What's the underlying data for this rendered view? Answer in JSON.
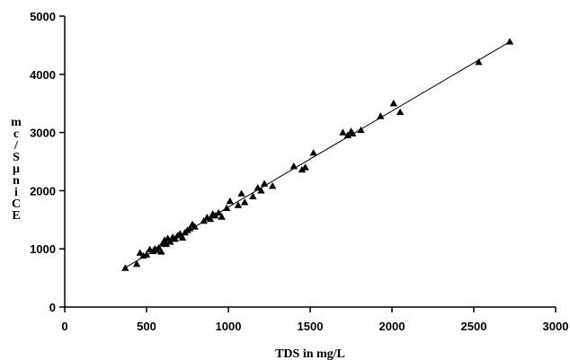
{
  "chart_data": {
    "type": "scatter",
    "title": "",
    "xlabel": "TDS in mg/L",
    "ylabel": "EC in μS/cm",
    "xlim": [
      0,
      3000
    ],
    "ylim": [
      0,
      5000
    ],
    "x_ticks": [
      "0",
      "500",
      "1000",
      "1500",
      "2000",
      "2500",
      "3000"
    ],
    "y_ticks": [
      "0",
      "1000",
      "2000",
      "3000",
      "4000",
      "5000"
    ],
    "grid": false,
    "legend": "none",
    "marker": "triangle",
    "colors": {
      "marker": "#000000",
      "trendline": "#000000",
      "axis": "#000000"
    },
    "trendline": {
      "x": [
        360,
        2720
      ],
      "y": [
        660,
        4560
      ]
    },
    "points": [
      {
        "x": 370,
        "y": 670
      },
      {
        "x": 440,
        "y": 740
      },
      {
        "x": 460,
        "y": 930
      },
      {
        "x": 480,
        "y": 880
      },
      {
        "x": 500,
        "y": 900
      },
      {
        "x": 520,
        "y": 990
      },
      {
        "x": 540,
        "y": 960
      },
      {
        "x": 550,
        "y": 1000
      },
      {
        "x": 560,
        "y": 980
      },
      {
        "x": 575,
        "y": 1020
      },
      {
        "x": 590,
        "y": 950
      },
      {
        "x": 600,
        "y": 1100
      },
      {
        "x": 610,
        "y": 1150
      },
      {
        "x": 620,
        "y": 1080
      },
      {
        "x": 630,
        "y": 1180
      },
      {
        "x": 645,
        "y": 1120
      },
      {
        "x": 660,
        "y": 1200
      },
      {
        "x": 675,
        "y": 1170
      },
      {
        "x": 690,
        "y": 1230
      },
      {
        "x": 705,
        "y": 1260
      },
      {
        "x": 720,
        "y": 1190
      },
      {
        "x": 735,
        "y": 1280
      },
      {
        "x": 750,
        "y": 1320
      },
      {
        "x": 765,
        "y": 1350
      },
      {
        "x": 780,
        "y": 1420
      },
      {
        "x": 795,
        "y": 1380
      },
      {
        "x": 850,
        "y": 1480
      },
      {
        "x": 870,
        "y": 1540
      },
      {
        "x": 890,
        "y": 1510
      },
      {
        "x": 905,
        "y": 1600
      },
      {
        "x": 920,
        "y": 1570
      },
      {
        "x": 940,
        "y": 1620
      },
      {
        "x": 960,
        "y": 1550
      },
      {
        "x": 990,
        "y": 1700
      },
      {
        "x": 1010,
        "y": 1820
      },
      {
        "x": 1060,
        "y": 1750
      },
      {
        "x": 1080,
        "y": 1950
      },
      {
        "x": 1100,
        "y": 1800
      },
      {
        "x": 1150,
        "y": 1900
      },
      {
        "x": 1180,
        "y": 2050
      },
      {
        "x": 1200,
        "y": 2000
      },
      {
        "x": 1220,
        "y": 2120
      },
      {
        "x": 1270,
        "y": 2080
      },
      {
        "x": 1400,
        "y": 2420
      },
      {
        "x": 1450,
        "y": 2360
      },
      {
        "x": 1470,
        "y": 2400
      },
      {
        "x": 1520,
        "y": 2650
      },
      {
        "x": 1700,
        "y": 3000
      },
      {
        "x": 1730,
        "y": 2950
      },
      {
        "x": 1750,
        "y": 3020
      },
      {
        "x": 1760,
        "y": 2980
      },
      {
        "x": 1810,
        "y": 3040
      },
      {
        "x": 1930,
        "y": 3280
      },
      {
        "x": 2010,
        "y": 3500
      },
      {
        "x": 2050,
        "y": 3350
      },
      {
        "x": 2530,
        "y": 4210
      },
      {
        "x": 2720,
        "y": 4560
      }
    ]
  }
}
